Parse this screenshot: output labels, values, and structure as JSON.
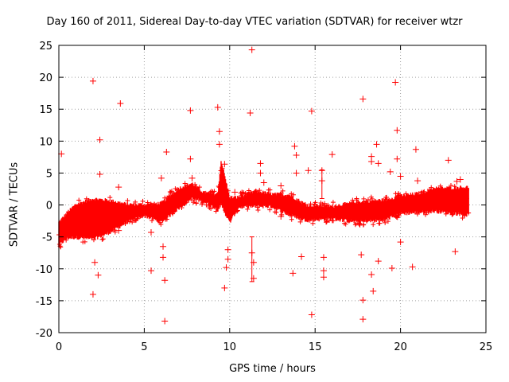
{
  "chart_data": {
    "type": "scatter",
    "title": "Day 160 of 2011, Sidereal Day-to-day VTEC variation (SDTVAR) for receiver wtzr",
    "xlabel": "GPS time / hours",
    "ylabel": "SDTVAR / TECUs",
    "xlim": [
      0,
      25
    ],
    "ylim": [
      -20,
      25
    ],
    "xticks": [
      0,
      5,
      10,
      15,
      20,
      25
    ],
    "yticks": [
      -20,
      -15,
      -10,
      -5,
      0,
      5,
      10,
      15,
      20,
      25
    ],
    "grid": true,
    "color": "#ff0000",
    "marker": "plus",
    "band_trend": [
      {
        "x": 0.0,
        "center": -4.5,
        "half_width": 1.8
      },
      {
        "x": 0.5,
        "center": -3.2,
        "half_width": 2.0
      },
      {
        "x": 1.0,
        "center": -2.5,
        "half_width": 2.6
      },
      {
        "x": 2.0,
        "center": -2.2,
        "half_width": 3.2
      },
      {
        "x": 3.0,
        "center": -1.8,
        "half_width": 2.5
      },
      {
        "x": 4.0,
        "center": -1.3,
        "half_width": 1.4
      },
      {
        "x": 5.0,
        "center": -0.8,
        "half_width": 0.9
      },
      {
        "x": 6.0,
        "center": -1.2,
        "half_width": 1.5
      },
      {
        "x": 7.0,
        "center": 1.0,
        "half_width": 1.6
      },
      {
        "x": 7.8,
        "center": 2.2,
        "half_width": 1.2
      },
      {
        "x": 8.5,
        "center": 1.2,
        "half_width": 0.7
      },
      {
        "x": 9.3,
        "center": 0.5,
        "half_width": 1.2
      },
      {
        "x": 9.5,
        "center": 3.5,
        "half_width": 3.5
      },
      {
        "x": 10.0,
        "center": -0.8,
        "half_width": 2.0
      },
      {
        "x": 10.5,
        "center": 0.4,
        "half_width": 0.8
      },
      {
        "x": 11.5,
        "center": 1.0,
        "half_width": 1.2
      },
      {
        "x": 12.5,
        "center": 0.7,
        "half_width": 1.0
      },
      {
        "x": 13.5,
        "center": 0.0,
        "half_width": 1.6
      },
      {
        "x": 14.5,
        "center": -1.2,
        "half_width": 1.2
      },
      {
        "x": 16.0,
        "center": -1.2,
        "half_width": 1.0
      },
      {
        "x": 17.5,
        "center": -1.1,
        "half_width": 1.6
      },
      {
        "x": 19.0,
        "center": -0.8,
        "half_width": 1.6
      },
      {
        "x": 20.0,
        "center": 0.0,
        "half_width": 1.4
      },
      {
        "x": 21.0,
        "center": 0.3,
        "half_width": 1.5
      },
      {
        "x": 22.0,
        "center": 0.8,
        "half_width": 1.8
      },
      {
        "x": 23.0,
        "center": 0.7,
        "half_width": 2.0
      },
      {
        "x": 24.0,
        "center": 0.6,
        "half_width": 2.2
      }
    ],
    "outliers": [
      [
        0.15,
        8.0
      ],
      [
        2.0,
        19.4
      ],
      [
        2.0,
        -14.0
      ],
      [
        2.1,
        -9.0
      ],
      [
        2.3,
        -11.0
      ],
      [
        2.4,
        10.2
      ],
      [
        2.4,
        4.8
      ],
      [
        3.5,
        2.8
      ],
      [
        3.5,
        -4.0
      ],
      [
        3.6,
        15.9
      ],
      [
        5.4,
        -4.3
      ],
      [
        5.4,
        -10.3
      ],
      [
        6.0,
        4.2
      ],
      [
        6.1,
        -6.5
      ],
      [
        6.1,
        -8.2
      ],
      [
        6.2,
        -11.8
      ],
      [
        6.2,
        -18.2
      ],
      [
        6.3,
        8.3
      ],
      [
        7.7,
        14.8
      ],
      [
        7.7,
        7.2
      ],
      [
        7.8,
        4.2
      ],
      [
        9.3,
        15.3
      ],
      [
        9.4,
        11.5
      ],
      [
        9.4,
        9.5
      ],
      [
        9.7,
        -13.0
      ],
      [
        9.8,
        -9.8
      ],
      [
        9.9,
        -8.5
      ],
      [
        9.9,
        -7.0
      ],
      [
        9.7,
        6.4
      ],
      [
        10.3,
        2.0
      ],
      [
        11.2,
        14.4
      ],
      [
        11.3,
        24.3
      ],
      [
        11.3,
        -7.5
      ],
      [
        11.4,
        -9.0
      ],
      [
        11.4,
        -11.5
      ],
      [
        11.8,
        6.5
      ],
      [
        11.8,
        5.0
      ],
      [
        12.0,
        3.5
      ],
      [
        13.0,
        3.0
      ],
      [
        13.0,
        -1.8
      ],
      [
        13.8,
        9.2
      ],
      [
        13.9,
        7.8
      ],
      [
        13.9,
        5.0
      ],
      [
        13.7,
        -10.7
      ],
      [
        14.2,
        -8.1
      ],
      [
        14.6,
        5.4
      ],
      [
        14.8,
        14.7
      ],
      [
        14.8,
        -17.2
      ],
      [
        15.4,
        5.4
      ],
      [
        15.4,
        3.8
      ],
      [
        15.5,
        -8.2
      ],
      [
        15.5,
        -10.3
      ],
      [
        15.5,
        -11.3
      ],
      [
        16.0,
        7.9
      ],
      [
        17.7,
        -7.8
      ],
      [
        17.8,
        16.6
      ],
      [
        17.8,
        -14.9
      ],
      [
        17.8,
        -17.9
      ],
      [
        18.3,
        7.6
      ],
      [
        18.3,
        6.8
      ],
      [
        18.3,
        -10.9
      ],
      [
        18.4,
        -13.5
      ],
      [
        18.6,
        9.5
      ],
      [
        18.7,
        6.5
      ],
      [
        18.7,
        -8.8
      ],
      [
        19.4,
        5.2
      ],
      [
        19.5,
        -9.9
      ],
      [
        19.7,
        19.2
      ],
      [
        19.8,
        11.7
      ],
      [
        19.8,
        7.2
      ],
      [
        20.0,
        4.5
      ],
      [
        20.0,
        -5.8
      ],
      [
        20.7,
        -9.7
      ],
      [
        20.9,
        8.7
      ],
      [
        21.0,
        3.8
      ],
      [
        22.8,
        7.0
      ],
      [
        23.2,
        -7.3
      ],
      [
        23.3,
        3.7
      ],
      [
        23.5,
        4.0
      ]
    ],
    "error_bars": [
      {
        "x": 11.3,
        "low": -12.0,
        "high": -5.0
      },
      {
        "x": 15.4,
        "low": 1.0,
        "high": 5.5
      }
    ]
  }
}
